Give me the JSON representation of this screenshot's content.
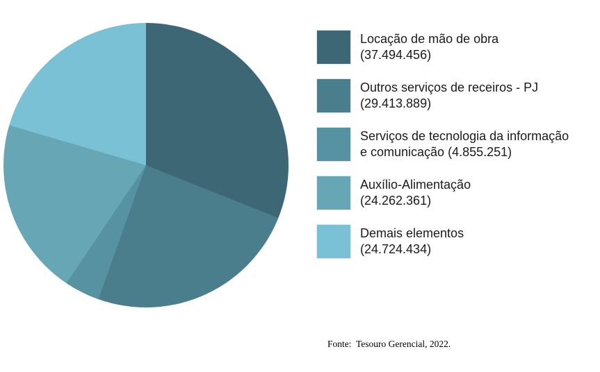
{
  "chart_data": {
    "type": "pie",
    "title": "",
    "labels": [
      "Locação de mão de obra",
      "Outros serviços de receiros - PJ",
      "Serviços de tecnologia da informação e comunicação",
      "Auxílio-Alimentação",
      "Demais elementos"
    ],
    "values": [
      37494456,
      29413889,
      4855251,
      24262361,
      24724434
    ],
    "values_formatted": [
      "37.494.456",
      "29.413.889",
      "4.855.251",
      "24.262.361",
      "24.724.434"
    ],
    "colors": [
      "#3d6775",
      "#4a7e8d",
      "#5692a2",
      "#67a6b4",
      "#7bc1d6"
    ],
    "start_angle_deg": 0,
    "direction": "clockwise",
    "legend_position": "right",
    "grid": false
  },
  "legend": {
    "items": [
      {
        "lines": [
          "Locação de mão de obra",
          "(37.494.456)"
        ]
      },
      {
        "lines": [
          "Outros serviços de receiros - PJ",
          "(29.413.889)"
        ]
      },
      {
        "lines": [
          "Serviços de tecnologia da informação",
          "e comunicação (4.855.251)"
        ]
      },
      {
        "lines": [
          "Auxílio-Alimentação",
          "(24.262.361)"
        ]
      },
      {
        "lines": [
          "Demais elementos",
          "(24.724.434)"
        ]
      }
    ]
  },
  "footer": {
    "source": "Fonte:  Tesouro Gerencial, 2022."
  }
}
